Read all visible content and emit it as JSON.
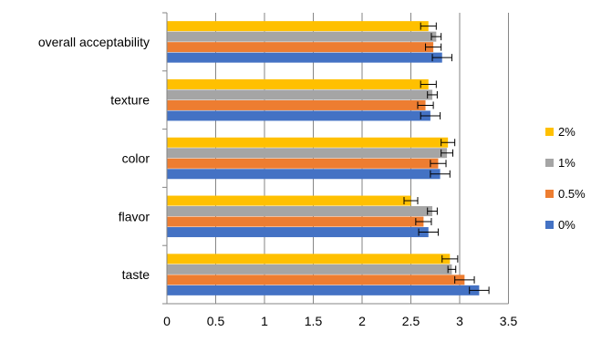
{
  "chart_data": {
    "type": "bar",
    "orientation": "horizontal",
    "title": "",
    "xlabel": "",
    "ylabel": "",
    "xlim": [
      0,
      3.5
    ],
    "x_ticks": [
      "0",
      "0.5",
      "1",
      "1.5",
      "2",
      "2.5",
      "3",
      "3.5"
    ],
    "grid": "vertical",
    "categories": [
      "overall acceptability",
      "texture",
      "color",
      "flavor",
      "taste"
    ],
    "series": [
      {
        "name": "2%",
        "color": "#FFC000",
        "values": [
          2.68,
          2.68,
          2.88,
          2.5,
          2.9
        ],
        "errors": [
          0.08,
          0.08,
          0.07,
          0.07,
          0.08
        ]
      },
      {
        "name": "1%",
        "color": "#A5A5A5",
        "values": [
          2.76,
          2.72,
          2.87,
          2.72,
          2.92
        ],
        "errors": [
          0.05,
          0.05,
          0.06,
          0.05,
          0.04
        ]
      },
      {
        "name": "0.5%",
        "color": "#ED7D31",
        "values": [
          2.73,
          2.65,
          2.78,
          2.63,
          3.05
        ],
        "errors": [
          0.08,
          0.08,
          0.08,
          0.08,
          0.1
        ]
      },
      {
        "name": "0%",
        "color": "#4472C4",
        "values": [
          2.82,
          2.7,
          2.8,
          2.68,
          3.2
        ],
        "errors": [
          0.1,
          0.1,
          0.1,
          0.1,
          0.1
        ]
      }
    ],
    "legend_placement": "right",
    "legend_order": [
      "2%",
      "1%",
      "0.5%",
      "0%"
    ]
  }
}
